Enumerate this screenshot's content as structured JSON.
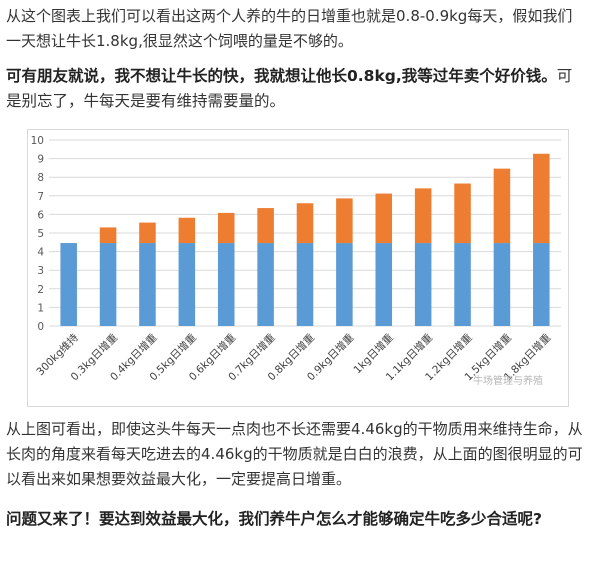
{
  "paragraphs": {
    "p1": "从这个图表上我们可以看出这两个人养的牛的日增重也就是0.8-0.9kg每天，假如我们一天想让牛长1.8kg,很显然这个饲喂的量是不够的。",
    "p2_bold": "可有朋友就说，我不想让牛长的快，我就想让他长0.8kg,我等过年卖个好价钱。",
    "p2_normal": "可是别忘了，牛每天是要有维持需要量的。",
    "p3": "从上图可看出，即使这头牛每天一点肉也不长还需要4.46kg的干物质用来维持生命，从长肉的角度来看每天吃进去的4.46kg的干物质就是白白的浪费，从上面的图很明显的可以看出来如果想要效益最大化，一定要提高日增重。",
    "p4": "问题又来了！要达到效益最大化，我们养牛户怎么才能够确定牛吃多少合适呢?"
  },
  "watermark": "牛场管理与养殖",
  "chart_data": {
    "type": "bar",
    "stacked": true,
    "categories": [
      "300kg维持",
      "0.3kg日增重",
      "0.4kg日增重",
      "0.5kg日增重",
      "0.6kg日增重",
      "0.7kg日增重",
      "0.8kg日增重",
      "0.9kg日增重",
      "1kg日增重",
      "1.1kg日增重",
      "1.2kg日增重",
      "1.5kg日增重",
      "1.8kg日增重"
    ],
    "series": [
      {
        "values": [
          4.46,
          4.46,
          4.46,
          4.46,
          4.46,
          4.46,
          4.46,
          4.46,
          4.46,
          4.46,
          4.46,
          4.46,
          4.46
        ],
        "color": "#5b9bd5"
      },
      {
        "values": [
          0,
          0.84,
          1.1,
          1.36,
          1.62,
          1.88,
          2.14,
          2.4,
          2.66,
          2.94,
          3.2,
          4.0,
          4.8
        ],
        "color": "#ed7d31"
      }
    ],
    "ylim": [
      0,
      10
    ],
    "yticks": [
      0,
      1,
      2,
      3,
      4,
      5,
      6,
      7,
      8,
      9,
      10
    ],
    "grid": true,
    "gridColor": "#d9d9d9"
  }
}
